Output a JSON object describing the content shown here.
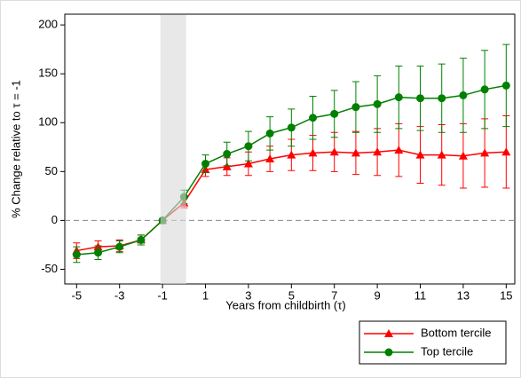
{
  "chart_data": {
    "type": "line",
    "xlabel": "Years from childbirth (τ)",
    "ylabel": "% Change relative to τ = -1",
    "x": [
      -5,
      -4,
      -3,
      -2,
      -1,
      0,
      1,
      2,
      3,
      4,
      5,
      6,
      7,
      8,
      9,
      10,
      11,
      12,
      13,
      14,
      15
    ],
    "series": [
      {
        "name": "Bottom tercile",
        "color": "#ff0000",
        "marker": "triangle",
        "values": [
          -31,
          -27,
          -26,
          -20,
          0,
          18,
          52,
          55,
          58,
          63,
          67,
          69,
          70,
          69,
          70,
          72,
          67,
          67,
          66,
          69,
          70
        ],
        "errors": [
          8,
          6,
          6,
          5,
          0,
          5,
          7,
          9,
          12,
          13,
          16,
          18,
          20,
          22,
          24,
          27,
          29,
          31,
          33,
          35,
          37
        ]
      },
      {
        "name": "Top tercile",
        "color": "#008000",
        "marker": "circle",
        "values": [
          -35,
          -33,
          -27,
          -20,
          0,
          24,
          58,
          68,
          76,
          89,
          95,
          105,
          109,
          116,
          119,
          126,
          125,
          125,
          128,
          134,
          138
        ],
        "errors": [
          8,
          7,
          6,
          5,
          0,
          7,
          9,
          12,
          15,
          17,
          19,
          22,
          24,
          26,
          29,
          32,
          33,
          35,
          38,
          40,
          42
        ]
      }
    ],
    "xlim": [
      -5.55,
      15.4
    ],
    "ylim": [
      -65,
      211
    ],
    "xticks": [
      -5,
      -3,
      -1,
      1,
      3,
      5,
      7,
      9,
      11,
      13,
      15
    ],
    "yticks": [
      -50,
      0,
      50,
      100,
      150,
      200
    ],
    "shaded_region": [
      -1.1,
      0.1
    ],
    "reference_line": 0,
    "legend": "bottom-right"
  }
}
